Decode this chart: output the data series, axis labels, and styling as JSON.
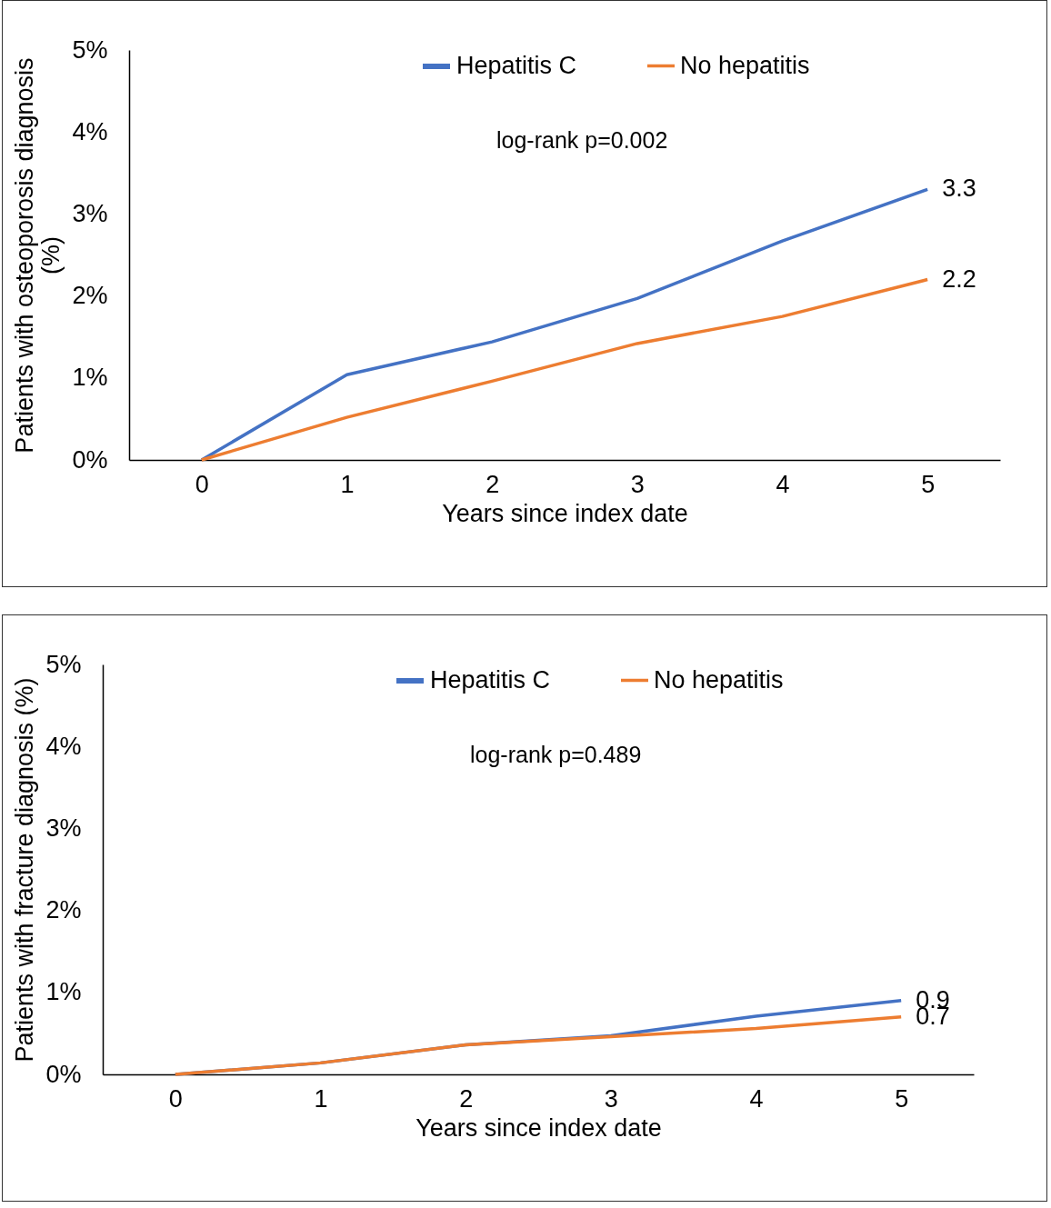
{
  "chart_data": [
    {
      "type": "line",
      "xlabel": "Years since index date",
      "ylabel": "Patients with osteoporosis diagnosis (%)",
      "x": [
        0,
        1,
        2,
        3,
        4,
        5
      ],
      "series": [
        {
          "name": "Hepatitis C",
          "color": "#4472c4",
          "values": [
            0,
            1.04,
            1.44,
            1.97,
            2.67,
            3.3
          ],
          "value_labels": [
            null,
            null,
            null,
            null,
            null,
            "3.3"
          ]
        },
        {
          "name": "No hepatitis",
          "color": "#ed7d31",
          "values": [
            0,
            0.52,
            0.96,
            1.42,
            1.75,
            2.2
          ],
          "value_labels": [
            null,
            null,
            null,
            null,
            null,
            "2.2"
          ]
        }
      ],
      "xlim": [
        -0.5,
        5.5
      ],
      "xticks": [
        0,
        1,
        2,
        3,
        4,
        5
      ],
      "ylim": [
        0,
        5
      ],
      "yticks": [
        {
          "value": 0,
          "label": "0%"
        },
        {
          "value": 1,
          "label": "1%"
        },
        {
          "value": 2,
          "label": "2%"
        },
        {
          "value": 3,
          "label": "3%"
        },
        {
          "value": 4,
          "label": "4%"
        },
        {
          "value": 5,
          "label": "5%"
        }
      ],
      "grid": false,
      "legend": "top",
      "marker": "none",
      "line_style": "solid",
      "annotations": [
        "log-rank p=0.002"
      ]
    },
    {
      "type": "line",
      "xlabel": "Years since index date",
      "ylabel": "Patients with fracture diagnosis (%)",
      "x": [
        0,
        1,
        2,
        3,
        4,
        5
      ],
      "series": [
        {
          "name": "Hepatitis C",
          "color": "#4472c4",
          "values": [
            0,
            0.14,
            0.36,
            0.47,
            0.71,
            0.9
          ],
          "value_labels": [
            null,
            null,
            null,
            null,
            null,
            "0.9"
          ]
        },
        {
          "name": "No hepatitis",
          "color": "#ed7d31",
          "values": [
            0,
            0.14,
            0.36,
            0.46,
            0.56,
            0.7
          ],
          "value_labels": [
            null,
            null,
            null,
            null,
            null,
            "0.7"
          ]
        }
      ],
      "xlim": [
        -0.5,
        5.5
      ],
      "xticks": [
        0,
        1,
        2,
        3,
        4,
        5
      ],
      "ylim": [
        0,
        5
      ],
      "yticks": [
        {
          "value": 0,
          "label": "0%"
        },
        {
          "value": 1,
          "label": "1%"
        },
        {
          "value": 2,
          "label": "2%"
        },
        {
          "value": 3,
          "label": "3%"
        },
        {
          "value": 4,
          "label": "4%"
        },
        {
          "value": 5,
          "label": "5%"
        }
      ],
      "grid": false,
      "legend": "top",
      "marker": "none",
      "line_style": "solid",
      "annotations": [
        "log-rank p=0.489"
      ]
    }
  ]
}
